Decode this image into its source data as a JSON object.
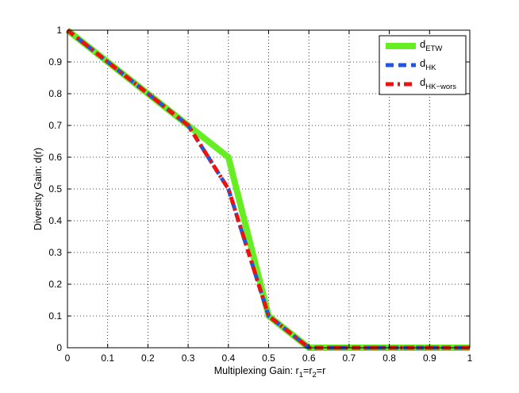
{
  "chart_data": {
    "type": "line",
    "xlabel": {
      "main": "Multiplexing Gain: r",
      "sub1": "1",
      "eq1": "=r",
      "sub2": "2",
      "eq2": "=r"
    },
    "ylabel": "Diversity Gain: d(r)",
    "xlim": [
      0,
      1
    ],
    "ylim": [
      0,
      1
    ],
    "x_ticks": [
      "0",
      "0.1",
      "0.2",
      "0.3",
      "0.4",
      "0.5",
      "0.6",
      "0.7",
      "0.8",
      "0.9",
      "1"
    ],
    "y_ticks": [
      "0",
      "0.1",
      "0.2",
      "0.3",
      "0.4",
      "0.5",
      "0.6",
      "0.7",
      "0.8",
      "0.9",
      "1"
    ],
    "grid": true,
    "legend_position": "top-right",
    "series": [
      {
        "name_main": "d",
        "name_sub": "ETW",
        "color": "#66ee22",
        "style": "solid",
        "x": [
          0,
          0.1,
          0.2,
          0.3,
          0.4,
          0.5,
          0.6,
          0.7,
          0.8,
          0.9,
          1.0
        ],
        "y": [
          1.0,
          0.9,
          0.8,
          0.7,
          0.6,
          0.1,
          0.0,
          0.0,
          0.0,
          0.0,
          0.0
        ]
      },
      {
        "name_main": "d",
        "name_sub": "HK",
        "color": "#2255dd",
        "style": "dashed",
        "x": [
          0,
          0.1,
          0.2,
          0.3,
          0.35,
          0.4,
          0.45,
          0.5,
          0.6,
          0.7,
          0.8,
          0.9,
          1.0
        ],
        "y": [
          1.0,
          0.9,
          0.8,
          0.7,
          0.6,
          0.5,
          0.3,
          0.1,
          0.0,
          0.0,
          0.0,
          0.0,
          0.0
        ]
      },
      {
        "name_main": "d",
        "name_sub": "HK−wors",
        "color": "#ee1111",
        "style": "dashdot",
        "x": [
          0,
          0.1,
          0.2,
          0.3,
          0.35,
          0.4,
          0.45,
          0.5,
          0.6,
          0.7,
          0.8,
          0.9,
          1.0
        ],
        "y": [
          1.0,
          0.9,
          0.8,
          0.7,
          0.6,
          0.5,
          0.3,
          0.1,
          0.0,
          0.0,
          0.0,
          0.0,
          0.0
        ]
      }
    ]
  }
}
